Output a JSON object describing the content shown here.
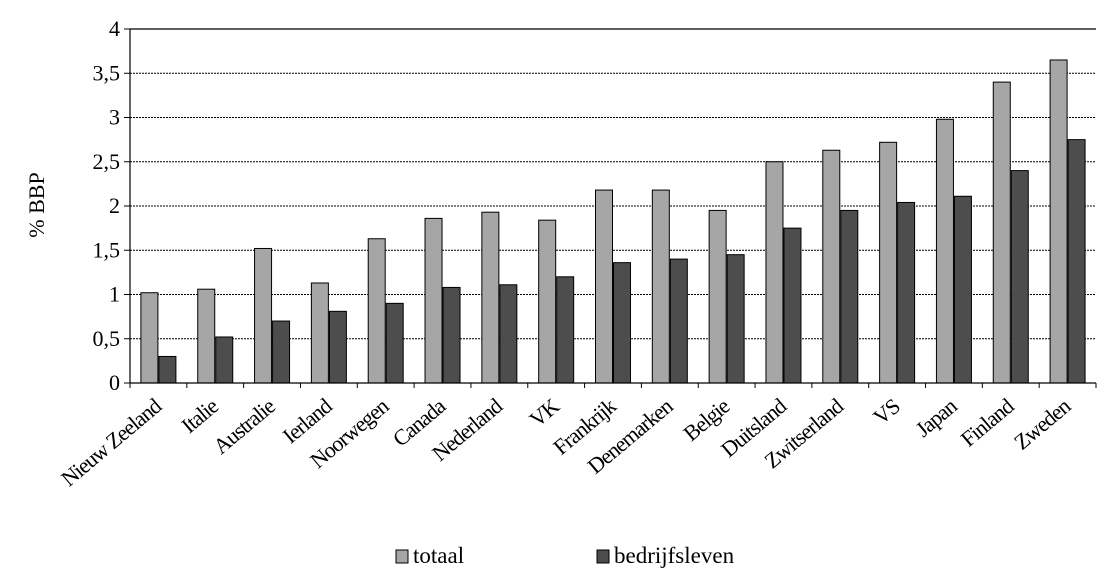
{
  "chart_data": {
    "type": "bar",
    "ylabel": "% BBP",
    "xlabel": "",
    "ylim": [
      0,
      4
    ],
    "yticks": [
      "0",
      "0,5",
      "1",
      "1,5",
      "2",
      "2,5",
      "3",
      "3,5",
      "4"
    ],
    "ytick_values": [
      0,
      0.5,
      1,
      1.5,
      2,
      2.5,
      3,
      3.5,
      4
    ],
    "grid": true,
    "legend_position": "bottom",
    "categories": [
      "Nieuw Zeeland",
      "Italie",
      "Australie",
      "Ierland",
      "Noorwegen",
      "Canada",
      "Nederland",
      "VK",
      "Frankrijk",
      "Denemarken",
      "Belgie",
      "Duitsland",
      "Zwitserland",
      "VS",
      "Japan",
      "Finland",
      "Zweden"
    ],
    "series": [
      {
        "name": "totaal",
        "color": "#a6a6a6",
        "values": [
          1.02,
          1.06,
          1.52,
          1.13,
          1.63,
          1.86,
          1.93,
          1.84,
          2.18,
          2.18,
          1.95,
          2.5,
          2.63,
          2.72,
          2.98,
          3.4,
          3.65
        ]
      },
      {
        "name": "bedrijfsleven",
        "color": "#4d4d4d",
        "values": [
          0.3,
          0.52,
          0.7,
          0.81,
          0.9,
          1.08,
          1.11,
          1.2,
          1.36,
          1.4,
          1.45,
          1.75,
          1.95,
          2.04,
          2.11,
          2.4,
          2.75
        ]
      }
    ]
  }
}
